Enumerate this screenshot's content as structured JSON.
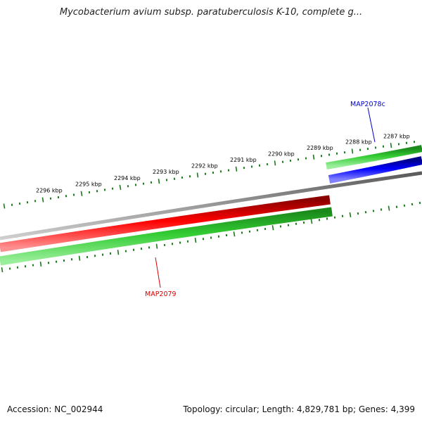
{
  "title": "Mycobacterium avium subsp. paratuberculosis K-10, complete g...",
  "footer": {
    "accession": "Accession: NC_002944",
    "topology": "Topology: circular; Length: 4,829,781 bp; Genes: 4,399"
  },
  "colors": {
    "backbone": "#808080",
    "cds_forward": "#33bb33",
    "cds_reverse": "#33bb33",
    "ticks": "#1a7a1a",
    "gene_map2079": "#ee0000",
    "gene_map2078c": "#0000ee"
  },
  "ruler": {
    "units": "kbp",
    "labels": [
      "2287 kbp",
      "2288 kbp",
      "2289 kbp",
      "2290 kbp",
      "2291 kbp",
      "2292 kbp",
      "2293 kbp",
      "2294 kbp",
      "2295 kbp",
      "2296 kbp"
    ]
  },
  "genes": [
    {
      "name": "MAP2079",
      "color": "#dd0000"
    },
    {
      "name": "MAP2078c",
      "color": "#0000cc"
    }
  ]
}
